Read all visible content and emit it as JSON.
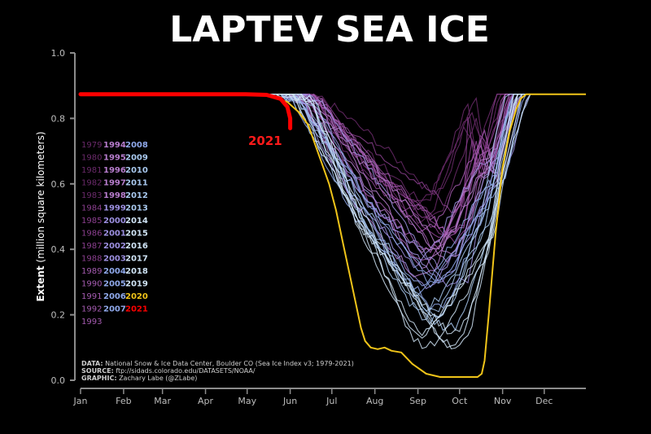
{
  "chart_data": {
    "type": "line",
    "title": "LAPTEV SEA ICE",
    "ylabel_bold": "Extent",
    "ylabel_rest": "(million square kilometers)",
    "ylim": [
      0,
      1.0
    ],
    "yticks": [
      "0.0",
      "0.2",
      "0.4",
      "0.6",
      "0.8",
      "1.0"
    ],
    "x_months": [
      "Jan",
      "Feb",
      "Mar",
      "Apr",
      "May",
      "Jun",
      "Jul",
      "Aug",
      "Sep",
      "Oct",
      "Nov",
      "Dec"
    ],
    "grid": false,
    "highlight_label": "2021",
    "legend_years": [
      "1979",
      "1980",
      "1981",
      "1982",
      "1983",
      "1984",
      "1985",
      "1986",
      "1987",
      "1988",
      "1989",
      "1990",
      "1991",
      "1992",
      "1993",
      "1994",
      "1995",
      "1996",
      "1997",
      "1998",
      "1999",
      "2000",
      "2001",
      "2002",
      "2003",
      "2004",
      "2005",
      "2006",
      "2007",
      "2008",
      "2009",
      "2010",
      "2011",
      "2012",
      "2013",
      "2014",
      "2015",
      "2016",
      "2017",
      "2018",
      "2019",
      "2020",
      "2021"
    ],
    "series_2021": {
      "x_day": [
        1,
        120,
        135,
        145,
        150,
        152,
        152
      ],
      "values": [
        0.874,
        0.874,
        0.872,
        0.86,
        0.835,
        0.8,
        0.77
      ]
    },
    "series_2020": {
      "x_day": [
        1,
        128,
        140,
        150,
        158,
        165,
        170,
        175,
        180,
        185,
        190,
        195,
        200,
        203,
        206,
        210,
        215,
        220,
        225,
        232,
        240,
        250,
        260,
        270,
        280,
        287,
        290,
        292,
        295,
        300,
        305,
        310,
        315,
        318,
        322,
        326,
        330,
        335,
        365
      ],
      "values": [
        0.874,
        0.874,
        0.865,
        0.85,
        0.82,
        0.78,
        0.72,
        0.66,
        0.6,
        0.52,
        0.42,
        0.32,
        0.22,
        0.16,
        0.12,
        0.1,
        0.095,
        0.1,
        0.09,
        0.085,
        0.05,
        0.02,
        0.01,
        0.01,
        0.01,
        0.01,
        0.02,
        0.06,
        0.2,
        0.45,
        0.65,
        0.76,
        0.83,
        0.86,
        0.874,
        0.874,
        0.874,
        0.874,
        0.874
      ]
    },
    "palette": [
      "#6b2a6b",
      "#8b3f8f",
      "#a45bb0",
      "#b67ccc",
      "#9c8fe0",
      "#8fa8ea",
      "#a8c8ee",
      "#cfe3f5"
    ],
    "colors": {
      "highlight": "#ff0000",
      "year2020": "#f0c419",
      "axis": "#8c8c8c"
    }
  },
  "source": {
    "data_label": "DATA:",
    "data_text": "National Snow & Ice Data Center, Boulder CO (Sea Ice Index v3; 1979-2021)",
    "source_label": "SOURCE:",
    "source_text": "ftp://sidads.colorado.edu/DATASETS/NOAA/",
    "graphic_label": "GRAPHIC:",
    "graphic_text": "Zachary Labe (@ZLabe)"
  }
}
